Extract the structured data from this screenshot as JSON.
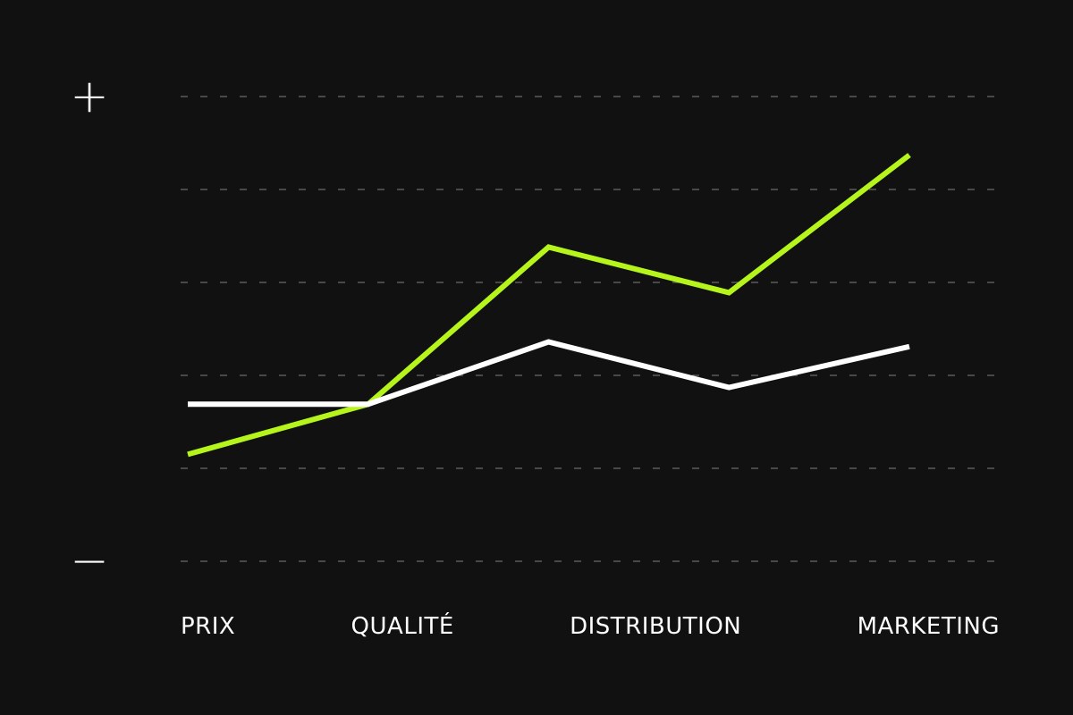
{
  "chart_data": {
    "type": "line",
    "categories": [
      "PRIX",
      "QUALITÉ",
      null,
      "DISTRIBUTION",
      "MARKETING"
    ],
    "series": [
      {
        "color": "#b6f51c",
        "values": [
          1.15,
          1.69,
          3.38,
          2.89,
          4.37
        ]
      },
      {
        "color": "#ffffff",
        "values": [
          1.69,
          1.69,
          2.36,
          1.87,
          2.31
        ]
      }
    ],
    "ylim": [
      0,
      5
    ],
    "yticks": [
      {
        "value": 0,
        "label": "−"
      },
      {
        "value": 5,
        "label": "+"
      }
    ],
    "ygrid": [
      0,
      1,
      2,
      3,
      4,
      5
    ],
    "grid": true
  }
}
